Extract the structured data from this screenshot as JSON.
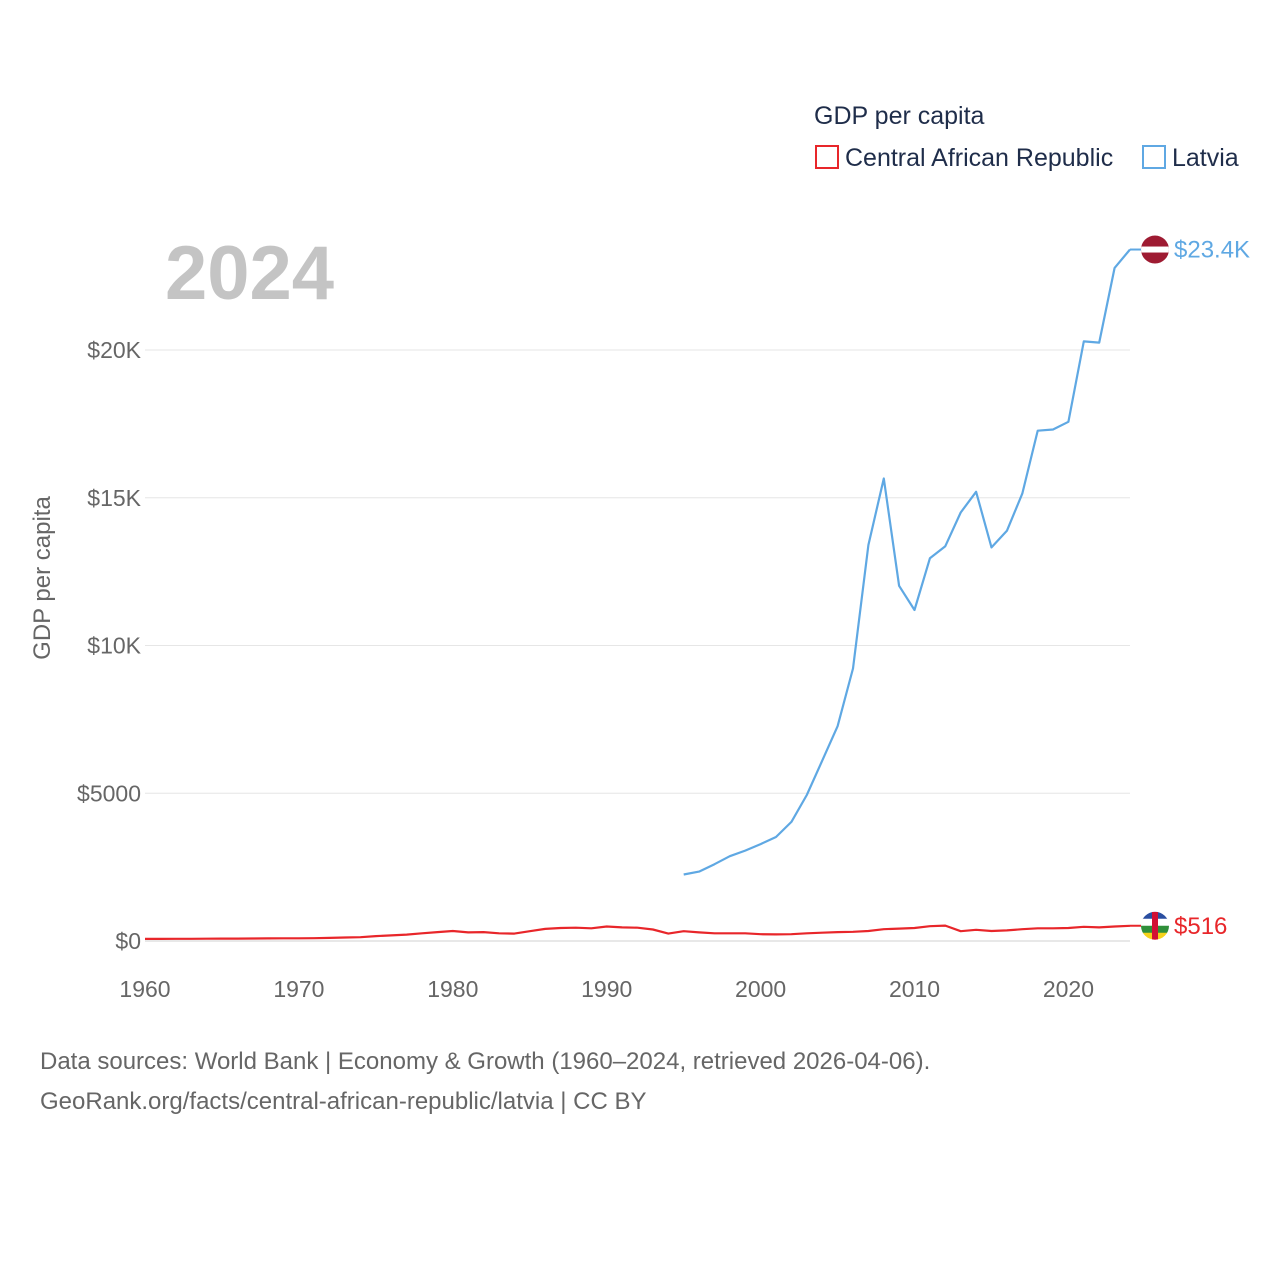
{
  "chart_data": {
    "type": "line",
    "legend": {
      "title": "GDP per capita",
      "placement": "top-right"
    },
    "current_year": "2024",
    "ylabel": "GDP per capita",
    "xlabel": "",
    "xlim": [
      1960,
      2024
    ],
    "ylim": [
      0,
      23500
    ],
    "x_ticks": [
      1960,
      1970,
      1980,
      1990,
      2000,
      2010,
      2020
    ],
    "x_tick_labels": [
      "1960",
      "1970",
      "1980",
      "1990",
      "2000",
      "2010",
      "2020"
    ],
    "y_ticks": [
      0,
      5000,
      10000,
      15000,
      20000
    ],
    "y_tick_labels": [
      "$0",
      "$5000",
      "$10K",
      "$15K",
      "$20K"
    ],
    "grid": true,
    "series": [
      {
        "name": "Central African Republic",
        "color": "#e8262a",
        "end_label": "$516",
        "flag": "central-african-republic",
        "points": [
          [
            1960,
            70
          ],
          [
            1961,
            72
          ],
          [
            1962,
            75
          ],
          [
            1963,
            76
          ],
          [
            1964,
            78
          ],
          [
            1965,
            80
          ],
          [
            1966,
            82
          ],
          [
            1967,
            85
          ],
          [
            1968,
            88
          ],
          [
            1969,
            90
          ],
          [
            1970,
            93
          ],
          [
            1971,
            96
          ],
          [
            1972,
            105
          ],
          [
            1973,
            120
          ],
          [
            1974,
            130
          ],
          [
            1975,
            165
          ],
          [
            1976,
            190
          ],
          [
            1977,
            215
          ],
          [
            1978,
            260
          ],
          [
            1979,
            300
          ],
          [
            1980,
            340
          ],
          [
            1981,
            290
          ],
          [
            1982,
            300
          ],
          [
            1983,
            260
          ],
          [
            1984,
            250
          ],
          [
            1985,
            330
          ],
          [
            1986,
            410
          ],
          [
            1987,
            440
          ],
          [
            1988,
            450
          ],
          [
            1989,
            430
          ],
          [
            1990,
            490
          ],
          [
            1991,
            460
          ],
          [
            1992,
            450
          ],
          [
            1993,
            390
          ],
          [
            1994,
            250
          ],
          [
            1995,
            330
          ],
          [
            1996,
            290
          ],
          [
            1997,
            260
          ],
          [
            1998,
            260
          ],
          [
            1999,
            260
          ],
          [
            2000,
            230
          ],
          [
            2001,
            225
          ],
          [
            2002,
            230
          ],
          [
            2003,
            260
          ],
          [
            2004,
            280
          ],
          [
            2005,
            300
          ],
          [
            2006,
            310
          ],
          [
            2007,
            340
          ],
          [
            2008,
            400
          ],
          [
            2009,
            420
          ],
          [
            2010,
            440
          ],
          [
            2011,
            500
          ],
          [
            2012,
            520
          ],
          [
            2013,
            330
          ],
          [
            2014,
            380
          ],
          [
            2015,
            340
          ],
          [
            2016,
            360
          ],
          [
            2017,
            400
          ],
          [
            2018,
            430
          ],
          [
            2019,
            430
          ],
          [
            2020,
            440
          ],
          [
            2021,
            480
          ],
          [
            2022,
            460
          ],
          [
            2023,
            490
          ],
          [
            2024,
            516
          ]
        ]
      },
      {
        "name": "Latvia",
        "color": "#5fa8e3",
        "end_label": "$23.4K",
        "flag": "latvia",
        "points": [
          [
            1995,
            2250
          ],
          [
            1996,
            2350
          ],
          [
            1997,
            2600
          ],
          [
            1998,
            2870
          ],
          [
            1999,
            3060
          ],
          [
            2000,
            3280
          ],
          [
            2001,
            3520
          ],
          [
            2002,
            4030
          ],
          [
            2003,
            4940
          ],
          [
            2004,
            6100
          ],
          [
            2005,
            7270
          ],
          [
            2006,
            9220
          ],
          [
            2007,
            13400
          ],
          [
            2008,
            15650
          ],
          [
            2009,
            12020
          ],
          [
            2010,
            11200
          ],
          [
            2011,
            12950
          ],
          [
            2012,
            13360
          ],
          [
            2013,
            14500
          ],
          [
            2014,
            15200
          ],
          [
            2015,
            13320
          ],
          [
            2016,
            13880
          ],
          [
            2017,
            15140
          ],
          [
            2018,
            17270
          ],
          [
            2019,
            17310
          ],
          [
            2020,
            17570
          ],
          [
            2021,
            20290
          ],
          [
            2022,
            20250
          ],
          [
            2023,
            22780
          ],
          [
            2024,
            23400
          ]
        ]
      }
    ]
  },
  "footer": {
    "line1": "Data sources: World Bank | Economy & Growth (1960–2024, retrieved 2026-04-06).",
    "line2": "GeoRank.org/facts/central-african-republic/latvia | CC BY"
  }
}
